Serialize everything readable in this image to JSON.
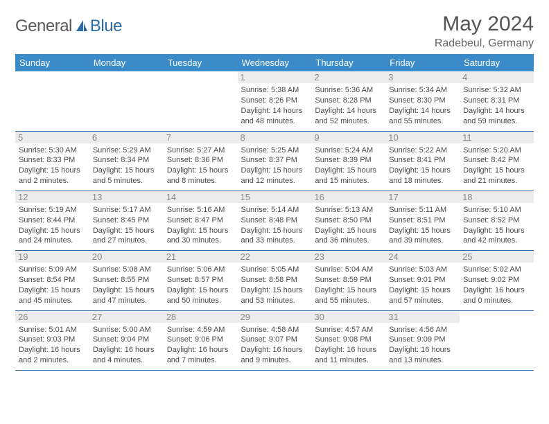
{
  "brand": {
    "text1": "General",
    "text2": "Blue"
  },
  "title": "May 2024",
  "location": "Radebeul, Germany",
  "colors": {
    "header_bg": "#3b8bc8",
    "header_text": "#ffffff",
    "border": "#2d6ca2",
    "daynum_bg": "#ececec",
    "daynum_text": "#888888",
    "body_text": "#4a4a4a",
    "brand_gray": "#5a5a5a",
    "brand_blue": "#2d6ca2"
  },
  "weekdays": [
    "Sunday",
    "Monday",
    "Tuesday",
    "Wednesday",
    "Thursday",
    "Friday",
    "Saturday"
  ],
  "weeks": [
    [
      null,
      null,
      null,
      {
        "n": "1",
        "sr": "5:38 AM",
        "ss": "8:26 PM",
        "dl": "14 hours and 48 minutes."
      },
      {
        "n": "2",
        "sr": "5:36 AM",
        "ss": "8:28 PM",
        "dl": "14 hours and 52 minutes."
      },
      {
        "n": "3",
        "sr": "5:34 AM",
        "ss": "8:30 PM",
        "dl": "14 hours and 55 minutes."
      },
      {
        "n": "4",
        "sr": "5:32 AM",
        "ss": "8:31 PM",
        "dl": "14 hours and 59 minutes."
      }
    ],
    [
      {
        "n": "5",
        "sr": "5:30 AM",
        "ss": "8:33 PM",
        "dl": "15 hours and 2 minutes."
      },
      {
        "n": "6",
        "sr": "5:29 AM",
        "ss": "8:34 PM",
        "dl": "15 hours and 5 minutes."
      },
      {
        "n": "7",
        "sr": "5:27 AM",
        "ss": "8:36 PM",
        "dl": "15 hours and 8 minutes."
      },
      {
        "n": "8",
        "sr": "5:25 AM",
        "ss": "8:37 PM",
        "dl": "15 hours and 12 minutes."
      },
      {
        "n": "9",
        "sr": "5:24 AM",
        "ss": "8:39 PM",
        "dl": "15 hours and 15 minutes."
      },
      {
        "n": "10",
        "sr": "5:22 AM",
        "ss": "8:41 PM",
        "dl": "15 hours and 18 minutes."
      },
      {
        "n": "11",
        "sr": "5:20 AM",
        "ss": "8:42 PM",
        "dl": "15 hours and 21 minutes."
      }
    ],
    [
      {
        "n": "12",
        "sr": "5:19 AM",
        "ss": "8:44 PM",
        "dl": "15 hours and 24 minutes."
      },
      {
        "n": "13",
        "sr": "5:17 AM",
        "ss": "8:45 PM",
        "dl": "15 hours and 27 minutes."
      },
      {
        "n": "14",
        "sr": "5:16 AM",
        "ss": "8:47 PM",
        "dl": "15 hours and 30 minutes."
      },
      {
        "n": "15",
        "sr": "5:14 AM",
        "ss": "8:48 PM",
        "dl": "15 hours and 33 minutes."
      },
      {
        "n": "16",
        "sr": "5:13 AM",
        "ss": "8:50 PM",
        "dl": "15 hours and 36 minutes."
      },
      {
        "n": "17",
        "sr": "5:11 AM",
        "ss": "8:51 PM",
        "dl": "15 hours and 39 minutes."
      },
      {
        "n": "18",
        "sr": "5:10 AM",
        "ss": "8:52 PM",
        "dl": "15 hours and 42 minutes."
      }
    ],
    [
      {
        "n": "19",
        "sr": "5:09 AM",
        "ss": "8:54 PM",
        "dl": "15 hours and 45 minutes."
      },
      {
        "n": "20",
        "sr": "5:08 AM",
        "ss": "8:55 PM",
        "dl": "15 hours and 47 minutes."
      },
      {
        "n": "21",
        "sr": "5:06 AM",
        "ss": "8:57 PM",
        "dl": "15 hours and 50 minutes."
      },
      {
        "n": "22",
        "sr": "5:05 AM",
        "ss": "8:58 PM",
        "dl": "15 hours and 53 minutes."
      },
      {
        "n": "23",
        "sr": "5:04 AM",
        "ss": "8:59 PM",
        "dl": "15 hours and 55 minutes."
      },
      {
        "n": "24",
        "sr": "5:03 AM",
        "ss": "9:01 PM",
        "dl": "15 hours and 57 minutes."
      },
      {
        "n": "25",
        "sr": "5:02 AM",
        "ss": "9:02 PM",
        "dl": "16 hours and 0 minutes."
      }
    ],
    [
      {
        "n": "26",
        "sr": "5:01 AM",
        "ss": "9:03 PM",
        "dl": "16 hours and 2 minutes."
      },
      {
        "n": "27",
        "sr": "5:00 AM",
        "ss": "9:04 PM",
        "dl": "16 hours and 4 minutes."
      },
      {
        "n": "28",
        "sr": "4:59 AM",
        "ss": "9:06 PM",
        "dl": "16 hours and 7 minutes."
      },
      {
        "n": "29",
        "sr": "4:58 AM",
        "ss": "9:07 PM",
        "dl": "16 hours and 9 minutes."
      },
      {
        "n": "30",
        "sr": "4:57 AM",
        "ss": "9:08 PM",
        "dl": "16 hours and 11 minutes."
      },
      {
        "n": "31",
        "sr": "4:56 AM",
        "ss": "9:09 PM",
        "dl": "16 hours and 13 minutes."
      },
      null
    ]
  ],
  "labels": {
    "sunrise": "Sunrise:",
    "sunset": "Sunset:",
    "daylight": "Daylight:"
  }
}
